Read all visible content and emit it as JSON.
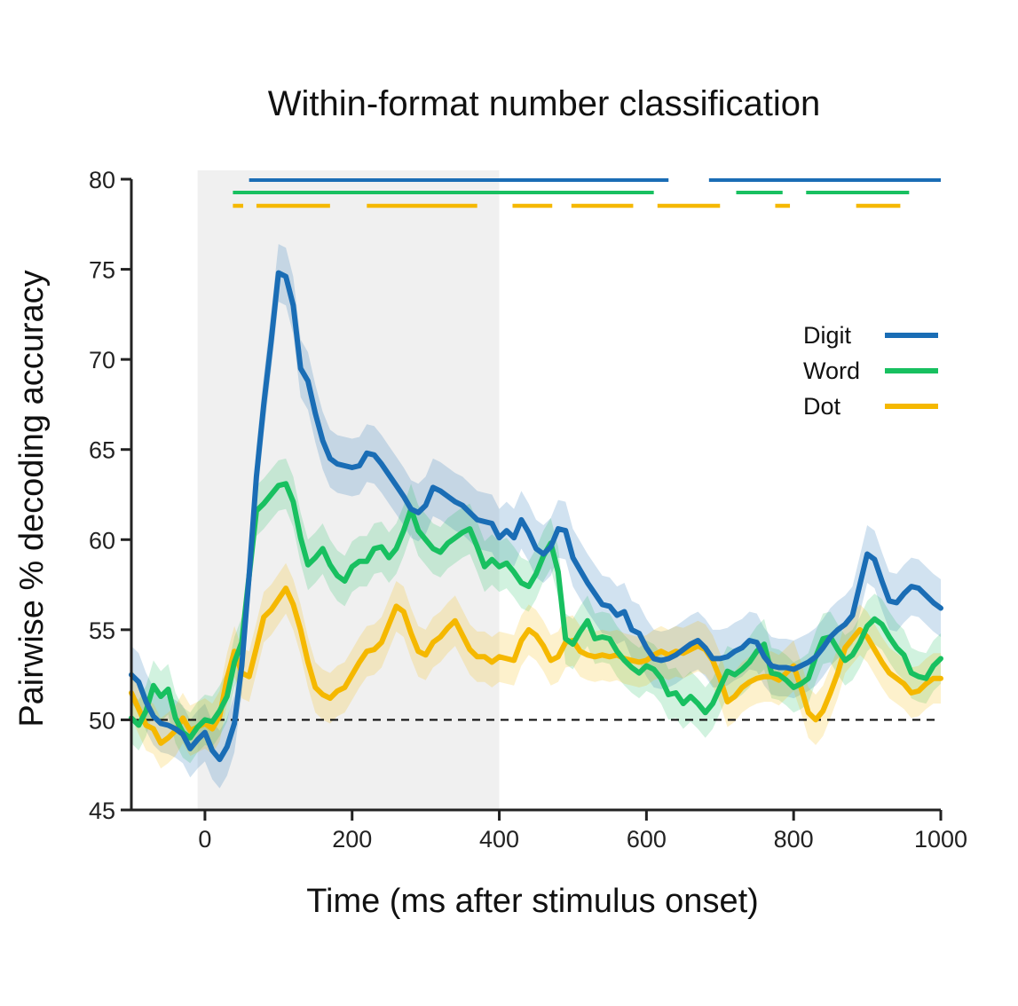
{
  "chart_data": {
    "type": "line",
    "title": "Within-format number classification",
    "xlabel": "Time (ms after stimulus onset)",
    "ylabel": "Pairwise % decoding accuracy",
    "xlim": [
      -100,
      1000
    ],
    "ylim": [
      45,
      80
    ],
    "xticks": [
      0,
      200,
      400,
      600,
      800,
      1000
    ],
    "yticks": [
      45,
      50,
      55,
      60,
      65,
      70,
      75,
      80
    ],
    "chance_level": 50,
    "stimulus_window": [
      -10,
      400
    ],
    "legend_position": "right",
    "colors": {
      "Digit": "#1a6db5",
      "Word": "#18c060",
      "Dot": "#f5b800",
      "stimulus_window": "#f0f0f0",
      "axis": "#222222"
    },
    "series": [
      {
        "name": "Digit",
        "x": [
          -100,
          -90,
          -80,
          -70,
          -60,
          -50,
          -40,
          -30,
          -20,
          -10,
          0,
          10,
          20,
          30,
          40,
          50,
          60,
          70,
          80,
          90,
          100,
          110,
          120,
          130,
          140,
          150,
          160,
          170,
          180,
          190,
          200,
          210,
          220,
          230,
          240,
          250,
          260,
          270,
          280,
          290,
          300,
          310,
          320,
          330,
          340,
          350,
          360,
          370,
          380,
          390,
          400,
          410,
          420,
          430,
          440,
          450,
          460,
          470,
          480,
          490,
          500,
          510,
          520,
          530,
          540,
          550,
          560,
          570,
          580,
          590,
          600,
          610,
          620,
          630,
          640,
          650,
          660,
          670,
          680,
          690,
          700,
          710,
          720,
          730,
          740,
          750,
          760,
          770,
          780,
          790,
          800,
          810,
          820,
          830,
          840,
          850,
          860,
          870,
          880,
          890,
          900,
          910,
          920,
          930,
          940,
          950,
          960,
          970,
          980,
          990,
          1000
        ],
        "values": [
          52.5,
          52.1,
          51.0,
          50.2,
          49.8,
          49.7,
          49.5,
          49.2,
          48.4,
          48.9,
          49.3,
          48.3,
          47.8,
          48.5,
          49.8,
          53.0,
          58.0,
          63.5,
          67.5,
          71.0,
          74.8,
          74.6,
          73.0,
          69.5,
          68.8,
          67.0,
          65.5,
          64.5,
          64.2,
          64.1,
          64.0,
          64.1,
          64.8,
          64.7,
          64.2,
          63.6,
          63.0,
          62.4,
          61.7,
          61.5,
          61.9,
          62.9,
          62.7,
          62.4,
          62.1,
          61.9,
          61.5,
          61.1,
          61.0,
          60.9,
          60.1,
          60.5,
          60.1,
          61.1,
          60.4,
          59.5,
          59.2,
          59.6,
          60.6,
          60.5,
          59.0,
          58.3,
          57.6,
          57.0,
          56.4,
          56.3,
          55.8,
          56.0,
          55.0,
          54.8,
          54.0,
          53.4,
          53.3,
          53.4,
          53.6,
          53.9,
          54.2,
          54.4,
          54.0,
          53.4,
          53.4,
          53.5,
          53.8,
          54.0,
          54.4,
          54.3,
          53.5,
          53.0,
          52.9,
          52.9,
          52.8,
          53.0,
          53.2,
          53.5,
          54.0,
          54.6,
          55.0,
          55.3,
          55.8,
          57.5,
          59.2,
          58.9,
          57.7,
          56.6,
          56.5,
          57.0,
          57.4,
          57.3,
          56.9,
          56.5,
          56.2
        ]
      },
      {
        "name": "Word",
        "x": [
          -100,
          -90,
          -80,
          -70,
          -60,
          -50,
          -40,
          -30,
          -20,
          -10,
          0,
          10,
          20,
          30,
          40,
          50,
          60,
          70,
          80,
          90,
          100,
          110,
          120,
          130,
          140,
          150,
          160,
          170,
          180,
          190,
          200,
          210,
          220,
          230,
          240,
          250,
          260,
          270,
          280,
          290,
          300,
          310,
          320,
          330,
          340,
          350,
          360,
          370,
          380,
          390,
          400,
          410,
          420,
          430,
          440,
          450,
          460,
          470,
          480,
          490,
          500,
          510,
          520,
          530,
          540,
          550,
          560,
          570,
          580,
          590,
          600,
          610,
          620,
          630,
          640,
          650,
          660,
          670,
          680,
          690,
          700,
          710,
          720,
          730,
          740,
          750,
          760,
          770,
          780,
          790,
          800,
          810,
          820,
          830,
          840,
          850,
          860,
          870,
          880,
          890,
          900,
          910,
          920,
          930,
          940,
          950,
          960,
          970,
          980,
          990,
          1000
        ],
        "values": [
          50.1,
          49.7,
          50.5,
          51.9,
          51.3,
          51.7,
          50.1,
          49.3,
          49.0,
          49.6,
          50.0,
          49.9,
          50.5,
          51.3,
          53.2,
          54.3,
          58.0,
          61.6,
          62.0,
          62.5,
          63.0,
          63.1,
          62.1,
          60.1,
          58.6,
          59.0,
          59.5,
          58.6,
          58.0,
          57.7,
          58.5,
          58.8,
          58.8,
          59.5,
          59.6,
          59.0,
          59.5,
          60.5,
          61.7,
          60.5,
          60.0,
          59.5,
          59.3,
          59.8,
          60.1,
          60.4,
          60.6,
          59.6,
          58.5,
          58.9,
          58.5,
          58.7,
          58.2,
          57.6,
          57.4,
          58.1,
          59.1,
          59.8,
          58.2,
          54.5,
          54.2,
          54.9,
          55.5,
          54.5,
          54.6,
          54.5,
          53.8,
          53.3,
          52.9,
          52.6,
          53.0,
          52.8,
          52.3,
          51.4,
          51.5,
          50.9,
          51.3,
          50.9,
          50.4,
          50.9,
          51.8,
          52.7,
          52.5,
          52.8,
          53.2,
          53.8,
          54.2,
          52.6,
          52.5,
          52.2,
          51.8,
          52.0,
          52.3,
          53.5,
          54.5,
          54.6,
          53.9,
          53.3,
          53.6,
          54.3,
          55.2,
          55.6,
          55.3,
          54.6,
          54.0,
          53.6,
          52.6,
          52.4,
          52.3,
          53.0,
          53.4
        ]
      },
      {
        "name": "Dot",
        "x": [
          -100,
          -90,
          -80,
          -70,
          -60,
          -50,
          -40,
          -30,
          -20,
          -10,
          0,
          10,
          20,
          30,
          40,
          50,
          60,
          70,
          80,
          90,
          100,
          110,
          120,
          130,
          140,
          150,
          160,
          170,
          180,
          190,
          200,
          210,
          220,
          230,
          240,
          250,
          260,
          270,
          280,
          290,
          300,
          310,
          320,
          330,
          340,
          350,
          360,
          370,
          380,
          390,
          400,
          410,
          420,
          430,
          440,
          450,
          460,
          470,
          480,
          490,
          500,
          510,
          520,
          530,
          540,
          550,
          560,
          570,
          580,
          590,
          600,
          610,
          620,
          630,
          640,
          650,
          660,
          670,
          680,
          690,
          700,
          710,
          720,
          730,
          740,
          750,
          760,
          770,
          780,
          790,
          800,
          810,
          820,
          830,
          840,
          850,
          860,
          870,
          880,
          890,
          900,
          910,
          920,
          930,
          940,
          950,
          960,
          970,
          980,
          990,
          1000
        ],
        "values": [
          51.5,
          50.6,
          49.7,
          49.5,
          48.7,
          49.0,
          49.4,
          50.1,
          49.4,
          49.6,
          49.8,
          49.5,
          50.2,
          52.3,
          53.8,
          52.6,
          52.4,
          54.0,
          55.7,
          56.1,
          56.7,
          57.3,
          56.4,
          55.0,
          53.2,
          51.8,
          51.4,
          51.2,
          51.6,
          51.8,
          52.5,
          53.2,
          53.8,
          53.9,
          54.3,
          55.3,
          56.3,
          56.0,
          54.8,
          53.8,
          53.6,
          54.3,
          54.6,
          55.1,
          55.5,
          54.7,
          53.9,
          53.5,
          53.5,
          53.2,
          53.5,
          53.4,
          53.3,
          54.4,
          55.0,
          54.7,
          54.1,
          53.3,
          53.5,
          54.3,
          54.4,
          53.8,
          53.6,
          53.5,
          53.6,
          53.5,
          53.6,
          53.4,
          53.3,
          53.2,
          53.3,
          53.6,
          53.8,
          53.6,
          53.8,
          53.7,
          53.9,
          54.1,
          53.9,
          53.3,
          52.3,
          51.0,
          51.3,
          51.8,
          52.1,
          52.3,
          52.4,
          52.4,
          52.2,
          52.6,
          53.0,
          51.8,
          50.4,
          50.0,
          50.5,
          51.5,
          52.6,
          54.0,
          54.5,
          55.0,
          54.6,
          53.9,
          53.2,
          52.6,
          52.3,
          52.0,
          51.5,
          51.6,
          52.0,
          52.3,
          52.3
        ]
      }
    ],
    "significance_bars": [
      {
        "series": "Digit",
        "segments": [
          [
            60,
            630
          ],
          [
            685,
            1000
          ]
        ]
      },
      {
        "series": "Word",
        "segments": [
          [
            38,
            610
          ],
          [
            722,
            785
          ],
          [
            817,
            957
          ]
        ]
      },
      {
        "series": "Dot",
        "segments": [
          [
            38,
            52
          ],
          [
            70,
            170
          ],
          [
            220,
            370
          ],
          [
            418,
            472
          ],
          [
            498,
            582
          ],
          [
            615,
            700
          ],
          [
            775,
            795
          ],
          [
            885,
            945
          ]
        ]
      }
    ]
  }
}
